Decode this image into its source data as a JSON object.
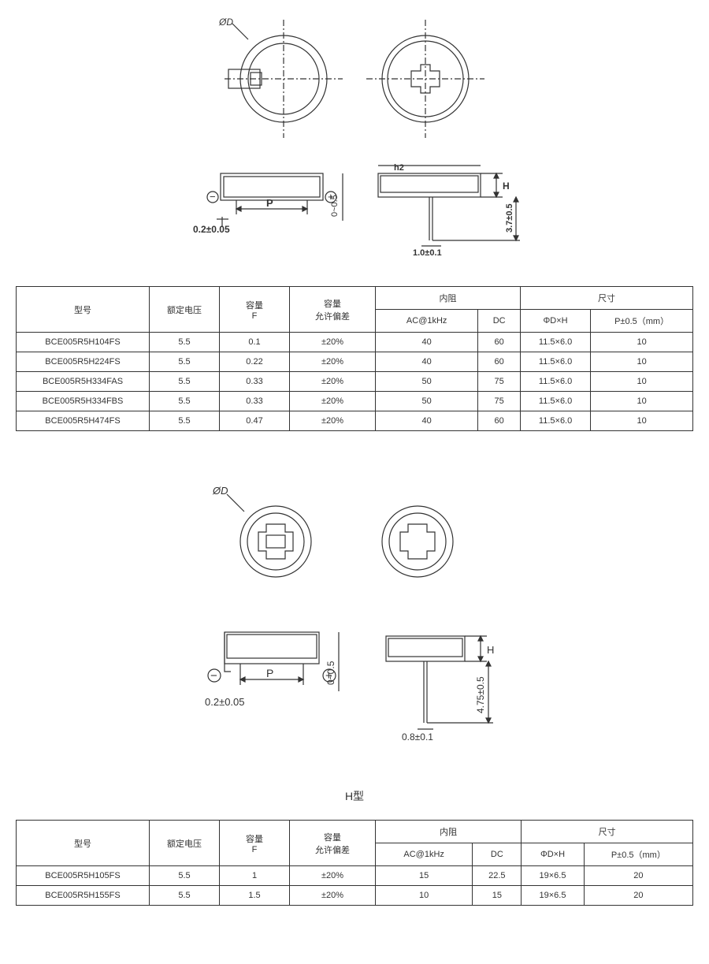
{
  "diagram1": {
    "labels": {
      "od": "ØD",
      "p": "P",
      "thick": "0.2±0.05",
      "gap": "0~0.5",
      "h2": "h2",
      "hcap": "H",
      "pin": "1.0±0.1",
      "lead": "3.7±0.5",
      "minus": "−",
      "plus": "+"
    },
    "stroke": "#333333",
    "fill": "none"
  },
  "table1": {
    "header": {
      "model": "型号",
      "voltage": "额定电压",
      "cap": "容量",
      "cap_unit": "F",
      "tol": "容量",
      "tol_sub": "允许偏差",
      "res": "内阻",
      "res_ac": "AC@1kHz",
      "res_dc": "DC",
      "size": "尺寸",
      "size_dh": "ΦD×H",
      "size_p": "P±0.5（mm）"
    },
    "rows": [
      [
        "BCE005R5H104FS",
        "5.5",
        "0.1",
        "±20%",
        "40",
        "60",
        "11.5×6.0",
        "10"
      ],
      [
        "BCE005R5H224FS",
        "5.5",
        "0.22",
        "±20%",
        "40",
        "60",
        "11.5×6.0",
        "10"
      ],
      [
        "BCE005R5H334FAS",
        "5.5",
        "0.33",
        "±20%",
        "50",
        "75",
        "11.5×6.0",
        "10"
      ],
      [
        "BCE005R5H334FBS",
        "5.5",
        "0.33",
        "±20%",
        "50",
        "75",
        "11.5×6.0",
        "10"
      ],
      [
        "BCE005R5H474FS",
        "5.5",
        "0.47",
        "±20%",
        "40",
        "60",
        "11.5×6.0",
        "10"
      ]
    ],
    "col_widths": [
      "160",
      "80",
      "80",
      "100",
      "100",
      "100",
      "120",
      "120"
    ]
  },
  "diagram2": {
    "labels": {
      "od": "ØD",
      "p": "P",
      "thick": "0.2±0.05",
      "gap": "0~0.5",
      "hcap": "H",
      "pin": "0.8±0.1",
      "lead": "4.75±0.5",
      "minus": "−",
      "plus": "+"
    },
    "stroke": "#333333",
    "fill": "none"
  },
  "section_title": "H型",
  "table2": {
    "header": {
      "model": "型号",
      "voltage": "额定电压",
      "cap": "容量",
      "cap_unit": "F",
      "tol": "容量",
      "tol_sub": "允许偏差",
      "res": "内阻",
      "res_ac": "AC@1kHz",
      "res_dc": "DC",
      "size": "尺寸",
      "size_dh": "ΦD×H",
      "size_p": "P±0.5（mm）"
    },
    "rows": [
      [
        "BCE005R5H105FS",
        "5.5",
        "1",
        "±20%",
        "15",
        "22.5",
        "19×6.5",
        "20"
      ],
      [
        "BCE005R5H155FS",
        "5.5",
        "1.5",
        "±20%",
        "10",
        "15",
        "19×6.5",
        "20"
      ]
    ]
  }
}
